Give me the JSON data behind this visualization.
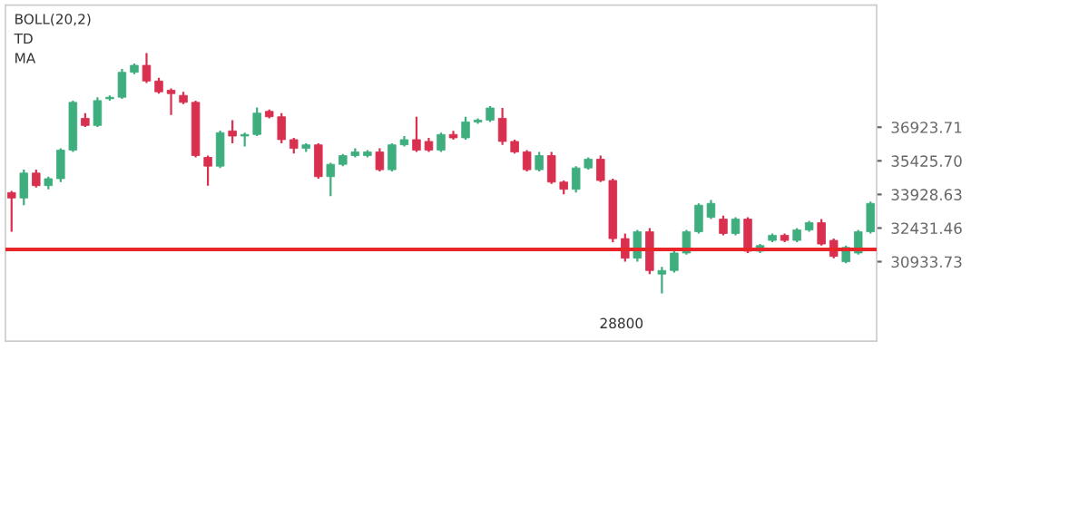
{
  "chart_data": {
    "type": "candlestick",
    "categories": [
      null,
      null,
      null,
      null,
      null,
      null,
      null,
      null,
      null,
      null,
      null,
      null,
      null,
      null,
      null,
      null,
      null,
      null,
      null,
      null,
      null,
      null,
      null,
      null,
      null,
      null,
      null,
      null,
      null,
      null,
      null,
      null,
      null,
      null,
      null,
      null,
      null,
      null,
      null,
      null,
      null,
      null,
      null,
      null,
      null,
      null,
      null,
      null,
      null,
      null,
      null,
      null,
      null,
      null,
      null,
      null,
      null,
      null,
      null,
      null,
      null,
      null,
      null,
      null,
      null,
      null,
      null,
      null,
      null,
      null,
      null
    ],
    "ohlc": [
      [
        34010,
        34090,
        32270,
        33770
      ],
      [
        33770,
        35030,
        33450,
        34880
      ],
      [
        34880,
        35030,
        34240,
        34320
      ],
      [
        34320,
        34720,
        34160,
        34630
      ],
      [
        34630,
        35980,
        34480,
        35900
      ],
      [
        35900,
        38110,
        35820,
        38030
      ],
      [
        37320,
        37550,
        36930,
        37000
      ],
      [
        37000,
        38260,
        36930,
        38110
      ],
      [
        38190,
        38340,
        38110,
        38260
      ],
      [
        38260,
        39520,
        38190,
        39370
      ],
      [
        39370,
        39760,
        39290,
        39680
      ],
      [
        39680,
        40230,
        38890,
        38980
      ],
      [
        38980,
        39130,
        38420,
        38500
      ],
      [
        38570,
        38650,
        37470,
        38420
      ],
      [
        38340,
        38500,
        37950,
        38030
      ],
      [
        38030,
        38110,
        35580,
        35660
      ],
      [
        35580,
        35660,
        34320,
        35190
      ],
      [
        35190,
        36770,
        35110,
        36680
      ],
      [
        36760,
        37240,
        36210,
        36530
      ],
      [
        36530,
        36680,
        36060,
        36600
      ],
      [
        36600,
        37800,
        36530,
        37550
      ],
      [
        37630,
        37710,
        37320,
        37390
      ],
      [
        37390,
        37550,
        36210,
        36370
      ],
      [
        36370,
        36450,
        35750,
        35980
      ],
      [
        35980,
        36210,
        35820,
        36140
      ],
      [
        36140,
        36210,
        34630,
        34720
      ],
      [
        34720,
        35340,
        33850,
        35270
      ],
      [
        35270,
        35730,
        35190,
        35660
      ],
      [
        35660,
        35980,
        35580,
        35820
      ],
      [
        35660,
        35900,
        35580,
        35820
      ],
      [
        35820,
        35980,
        34950,
        35030
      ],
      [
        35030,
        36210,
        34950,
        36140
      ],
      [
        36140,
        36530,
        36060,
        36370
      ],
      [
        36370,
        37390,
        35820,
        35900
      ],
      [
        36290,
        36450,
        35820,
        35900
      ],
      [
        35900,
        36680,
        35820,
        36600
      ],
      [
        36600,
        36760,
        36370,
        36450
      ],
      [
        36450,
        37390,
        36370,
        37160
      ],
      [
        37160,
        37320,
        37080,
        37240
      ],
      [
        37240,
        37860,
        37160,
        37780
      ],
      [
        37320,
        37780,
        36140,
        36290
      ],
      [
        36290,
        36370,
        35750,
        35820
      ],
      [
        35820,
        35900,
        34950,
        35030
      ],
      [
        35030,
        35820,
        34950,
        35660
      ],
      [
        35660,
        35820,
        34400,
        34480
      ],
      [
        34480,
        34550,
        33930,
        34160
      ],
      [
        34160,
        35190,
        34010,
        35110
      ],
      [
        35110,
        35580,
        35030,
        35500
      ],
      [
        35500,
        35660,
        34480,
        34550
      ],
      [
        34550,
        34630,
        31800,
        31960
      ],
      [
        31960,
        32190,
        30930,
        31090
      ],
      [
        31090,
        32350,
        30930,
        32270
      ],
      [
        32270,
        32430,
        30380,
        30540
      ],
      [
        30380,
        30700,
        29520,
        30540
      ],
      [
        30540,
        31400,
        30450,
        31320
      ],
      [
        31320,
        32350,
        31250,
        32270
      ],
      [
        32270,
        33530,
        32190,
        33450
      ],
      [
        32910,
        33680,
        32830,
        33530
      ],
      [
        32830,
        32980,
        32110,
        32190
      ],
      [
        32190,
        32910,
        32110,
        32830
      ],
      [
        32830,
        32910,
        31320,
        31400
      ],
      [
        31400,
        31720,
        31320,
        31650
      ],
      [
        31880,
        32190,
        31800,
        32110
      ],
      [
        32110,
        32190,
        31800,
        31880
      ],
      [
        31880,
        32430,
        31800,
        32350
      ],
      [
        32350,
        32750,
        32270,
        32670
      ],
      [
        32670,
        32830,
        31650,
        31720
      ],
      [
        31880,
        31960,
        31090,
        31170
      ],
      [
        30930,
        31650,
        30860,
        31570
      ],
      [
        31320,
        32350,
        31250,
        32270
      ],
      [
        32270,
        33610,
        32190,
        33530
      ]
    ],
    "colors": [
      "#d9304f",
      "#3fae7f",
      "#d9304f",
      "#3fae7f",
      "#3fae7f",
      "#3fae7f",
      "#d9304f",
      "#3fae7f",
      "#3fae7f",
      "#3fae7f",
      "#3fae7f",
      "#d9304f",
      "#d9304f",
      "#d9304f",
      "#d9304f",
      "#d9304f",
      "#d9304f",
      "#3fae7f",
      "#d9304f",
      "#3fae7f",
      "#3fae7f",
      "#d9304f",
      "#d9304f",
      "#d9304f",
      "#3fae7f",
      "#d9304f",
      "#3fae7f",
      "#3fae7f",
      "#3fae7f",
      "#3fae7f",
      "#d9304f",
      "#3fae7f",
      "#3fae7f",
      "#d9304f",
      "#d9304f",
      "#3fae7f",
      "#d9304f",
      "#3fae7f",
      "#3fae7f",
      "#3fae7f",
      "#d9304f",
      "#d9304f",
      "#d9304f",
      "#3fae7f",
      "#d9304f",
      "#d9304f",
      "#3fae7f",
      "#3fae7f",
      "#d9304f",
      "#d9304f",
      "#d9304f",
      "#3fae7f",
      "#d9304f",
      "#3fae7f",
      "#3fae7f",
      "#3fae7f",
      "#3fae7f",
      "#3fae7f",
      "#d9304f",
      "#3fae7f",
      "#d9304f",
      "#3fae7f",
      "#3fae7f",
      "#d9304f",
      "#3fae7f",
      "#3fae7f",
      "#d9304f",
      "#d9304f",
      "#3fae7f",
      "#3fae7f",
      "#3fae7f"
    ],
    "ylim": [
      27390,
      42360
    ],
    "yticks": [
      36923.71,
      {
        "value": 35425.7,
        "label": "35425.70"
      },
      33928.63,
      32431.46,
      30933.73
    ],
    "ref_lines": [
      {
        "axis": "y",
        "value": 31480,
        "color": "#e8262a"
      }
    ],
    "annotations": [
      "BOLL(20,2)",
      "TD",
      "MA",
      "28800"
    ],
    "tick_labels": "y"
  }
}
